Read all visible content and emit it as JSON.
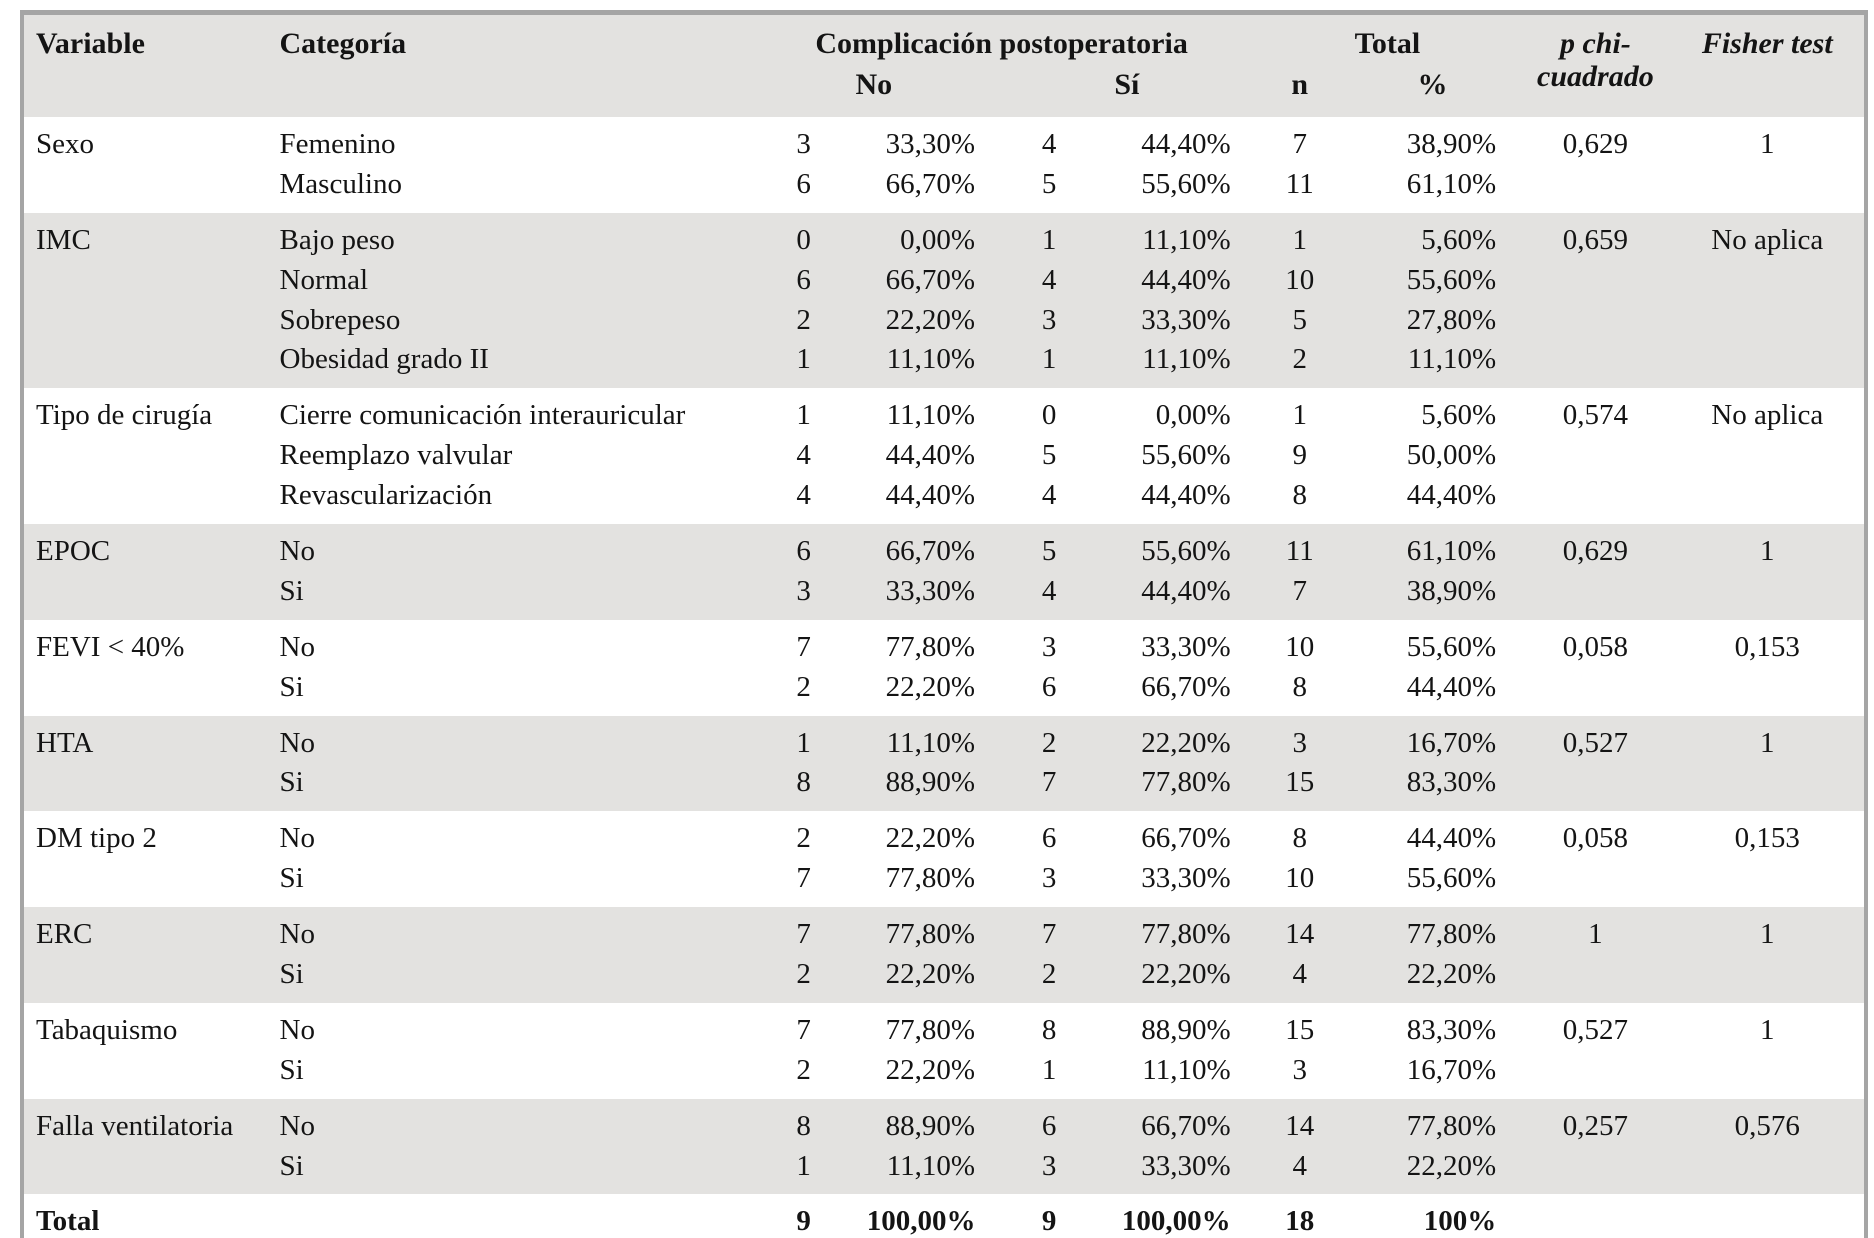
{
  "table": {
    "headers": {
      "variable": "Variable",
      "categoria": "Categoría",
      "complicacion": "Complicación postoperatoria",
      "no": "No",
      "si": "Sí",
      "total": "Total",
      "n": "n",
      "pct": "%",
      "p_chi_line1": "p chi-",
      "p_chi_line2": "cuadrado",
      "fisher": "Fisher test"
    },
    "colors": {
      "row_shade": "#e3e2e0",
      "border_gray": "#a5a5a5"
    },
    "groups": [
      {
        "variable": "Sexo",
        "p": "0,629",
        "fisher": "1",
        "rows": [
          {
            "categoria": "Femenino",
            "no_n": "3",
            "no_pct": "33,30%",
            "si_n": "4",
            "si_pct": "44,40%",
            "n": "7",
            "total_pct": "38,90%"
          },
          {
            "categoria": "Masculino",
            "no_n": "6",
            "no_pct": "66,70%",
            "si_n": "5",
            "si_pct": "55,60%",
            "n": "11",
            "total_pct": "61,10%"
          }
        ]
      },
      {
        "variable": "IMC",
        "p": "0,659",
        "fisher": "No aplica",
        "rows": [
          {
            "categoria": "Bajo peso",
            "no_n": "0",
            "no_pct": "0,00%",
            "si_n": "1",
            "si_pct": "11,10%",
            "n": "1",
            "total_pct": "5,60%"
          },
          {
            "categoria": "Normal",
            "no_n": "6",
            "no_pct": "66,70%",
            "si_n": "4",
            "si_pct": "44,40%",
            "n": "10",
            "total_pct": "55,60%"
          },
          {
            "categoria": "Sobrepeso",
            "no_n": "2",
            "no_pct": "22,20%",
            "si_n": "3",
            "si_pct": "33,30%",
            "n": "5",
            "total_pct": "27,80%"
          },
          {
            "categoria": "Obesidad grado II",
            "no_n": "1",
            "no_pct": "11,10%",
            "si_n": "1",
            "si_pct": "11,10%",
            "n": "2",
            "total_pct": "11,10%"
          }
        ]
      },
      {
        "variable": "Tipo de cirugía",
        "p": "0,574",
        "fisher": "No aplica",
        "rows": [
          {
            "categoria": "Cierre comunicación interauricular",
            "no_n": "1",
            "no_pct": "11,10%",
            "si_n": "0",
            "si_pct": "0,00%",
            "n": "1",
            "total_pct": "5,60%"
          },
          {
            "categoria": "Reemplazo valvular",
            "no_n": "4",
            "no_pct": "44,40%",
            "si_n": "5",
            "si_pct": "55,60%",
            "n": "9",
            "total_pct": "50,00%"
          },
          {
            "categoria": "Revascularización",
            "no_n": "4",
            "no_pct": "44,40%",
            "si_n": "4",
            "si_pct": "44,40%",
            "n": "8",
            "total_pct": "44,40%"
          }
        ]
      },
      {
        "variable": "EPOC",
        "p": "0,629",
        "fisher": "1",
        "rows": [
          {
            "categoria": "No",
            "no_n": "6",
            "no_pct": "66,70%",
            "si_n": "5",
            "si_pct": "55,60%",
            "n": "11",
            "total_pct": "61,10%"
          },
          {
            "categoria": "Si",
            "no_n": "3",
            "no_pct": "33,30%",
            "si_n": "4",
            "si_pct": "44,40%",
            "n": "7",
            "total_pct": "38,90%"
          }
        ]
      },
      {
        "variable": "FEVI < 40%",
        "p": "0,058",
        "fisher": "0,153",
        "rows": [
          {
            "categoria": "No",
            "no_n": "7",
            "no_pct": "77,80%",
            "si_n": "3",
            "si_pct": "33,30%",
            "n": "10",
            "total_pct": "55,60%"
          },
          {
            "categoria": "Si",
            "no_n": "2",
            "no_pct": "22,20%",
            "si_n": "6",
            "si_pct": "66,70%",
            "n": "8",
            "total_pct": "44,40%"
          }
        ]
      },
      {
        "variable": "HTA",
        "p": "0,527",
        "fisher": "1",
        "rows": [
          {
            "categoria": "No",
            "no_n": "1",
            "no_pct": "11,10%",
            "si_n": "2",
            "si_pct": "22,20%",
            "n": "3",
            "total_pct": "16,70%"
          },
          {
            "categoria": "Si",
            "no_n": "8",
            "no_pct": "88,90%",
            "si_n": "7",
            "si_pct": "77,80%",
            "n": "15",
            "total_pct": "83,30%"
          }
        ]
      },
      {
        "variable": "DM tipo 2",
        "p": "0,058",
        "fisher": "0,153",
        "rows": [
          {
            "categoria": "No",
            "no_n": "2",
            "no_pct": "22,20%",
            "si_n": "6",
            "si_pct": "66,70%",
            "n": "8",
            "total_pct": "44,40%"
          },
          {
            "categoria": "Si",
            "no_n": "7",
            "no_pct": "77,80%",
            "si_n": "3",
            "si_pct": "33,30%",
            "n": "10",
            "total_pct": "55,60%"
          }
        ]
      },
      {
        "variable": "ERC",
        "p": "1",
        "fisher": "1",
        "rows": [
          {
            "categoria": "No",
            "no_n": "7",
            "no_pct": "77,80%",
            "si_n": "7",
            "si_pct": "77,80%",
            "n": "14",
            "total_pct": "77,80%"
          },
          {
            "categoria": "Si",
            "no_n": "2",
            "no_pct": "22,20%",
            "si_n": "2",
            "si_pct": "22,20%",
            "n": "4",
            "total_pct": "22,20%"
          }
        ]
      },
      {
        "variable": "Tabaquismo",
        "p": "0,527",
        "fisher": "1",
        "rows": [
          {
            "categoria": "No",
            "no_n": "7",
            "no_pct": "77,80%",
            "si_n": "8",
            "si_pct": "88,90%",
            "n": "15",
            "total_pct": "83,30%"
          },
          {
            "categoria": "Si",
            "no_n": "2",
            "no_pct": "22,20%",
            "si_n": "1",
            "si_pct": "11,10%",
            "n": "3",
            "total_pct": "16,70%"
          }
        ]
      },
      {
        "variable": "Falla ventilatoria",
        "p": "0,257",
        "fisher": "0,576",
        "rows": [
          {
            "categoria": "No",
            "no_n": "8",
            "no_pct": "88,90%",
            "si_n": "6",
            "si_pct": "66,70%",
            "n": "14",
            "total_pct": "77,80%"
          },
          {
            "categoria": "Si",
            "no_n": "1",
            "no_pct": "11,10%",
            "si_n": "3",
            "si_pct": "33,30%",
            "n": "4",
            "total_pct": "22,20%"
          }
        ]
      }
    ],
    "total_row": {
      "label": "Total",
      "no_n": "9",
      "no_pct": "100,00%",
      "si_n": "9",
      "si_pct": "100,00%",
      "n": "18",
      "total_pct": "100%"
    }
  }
}
